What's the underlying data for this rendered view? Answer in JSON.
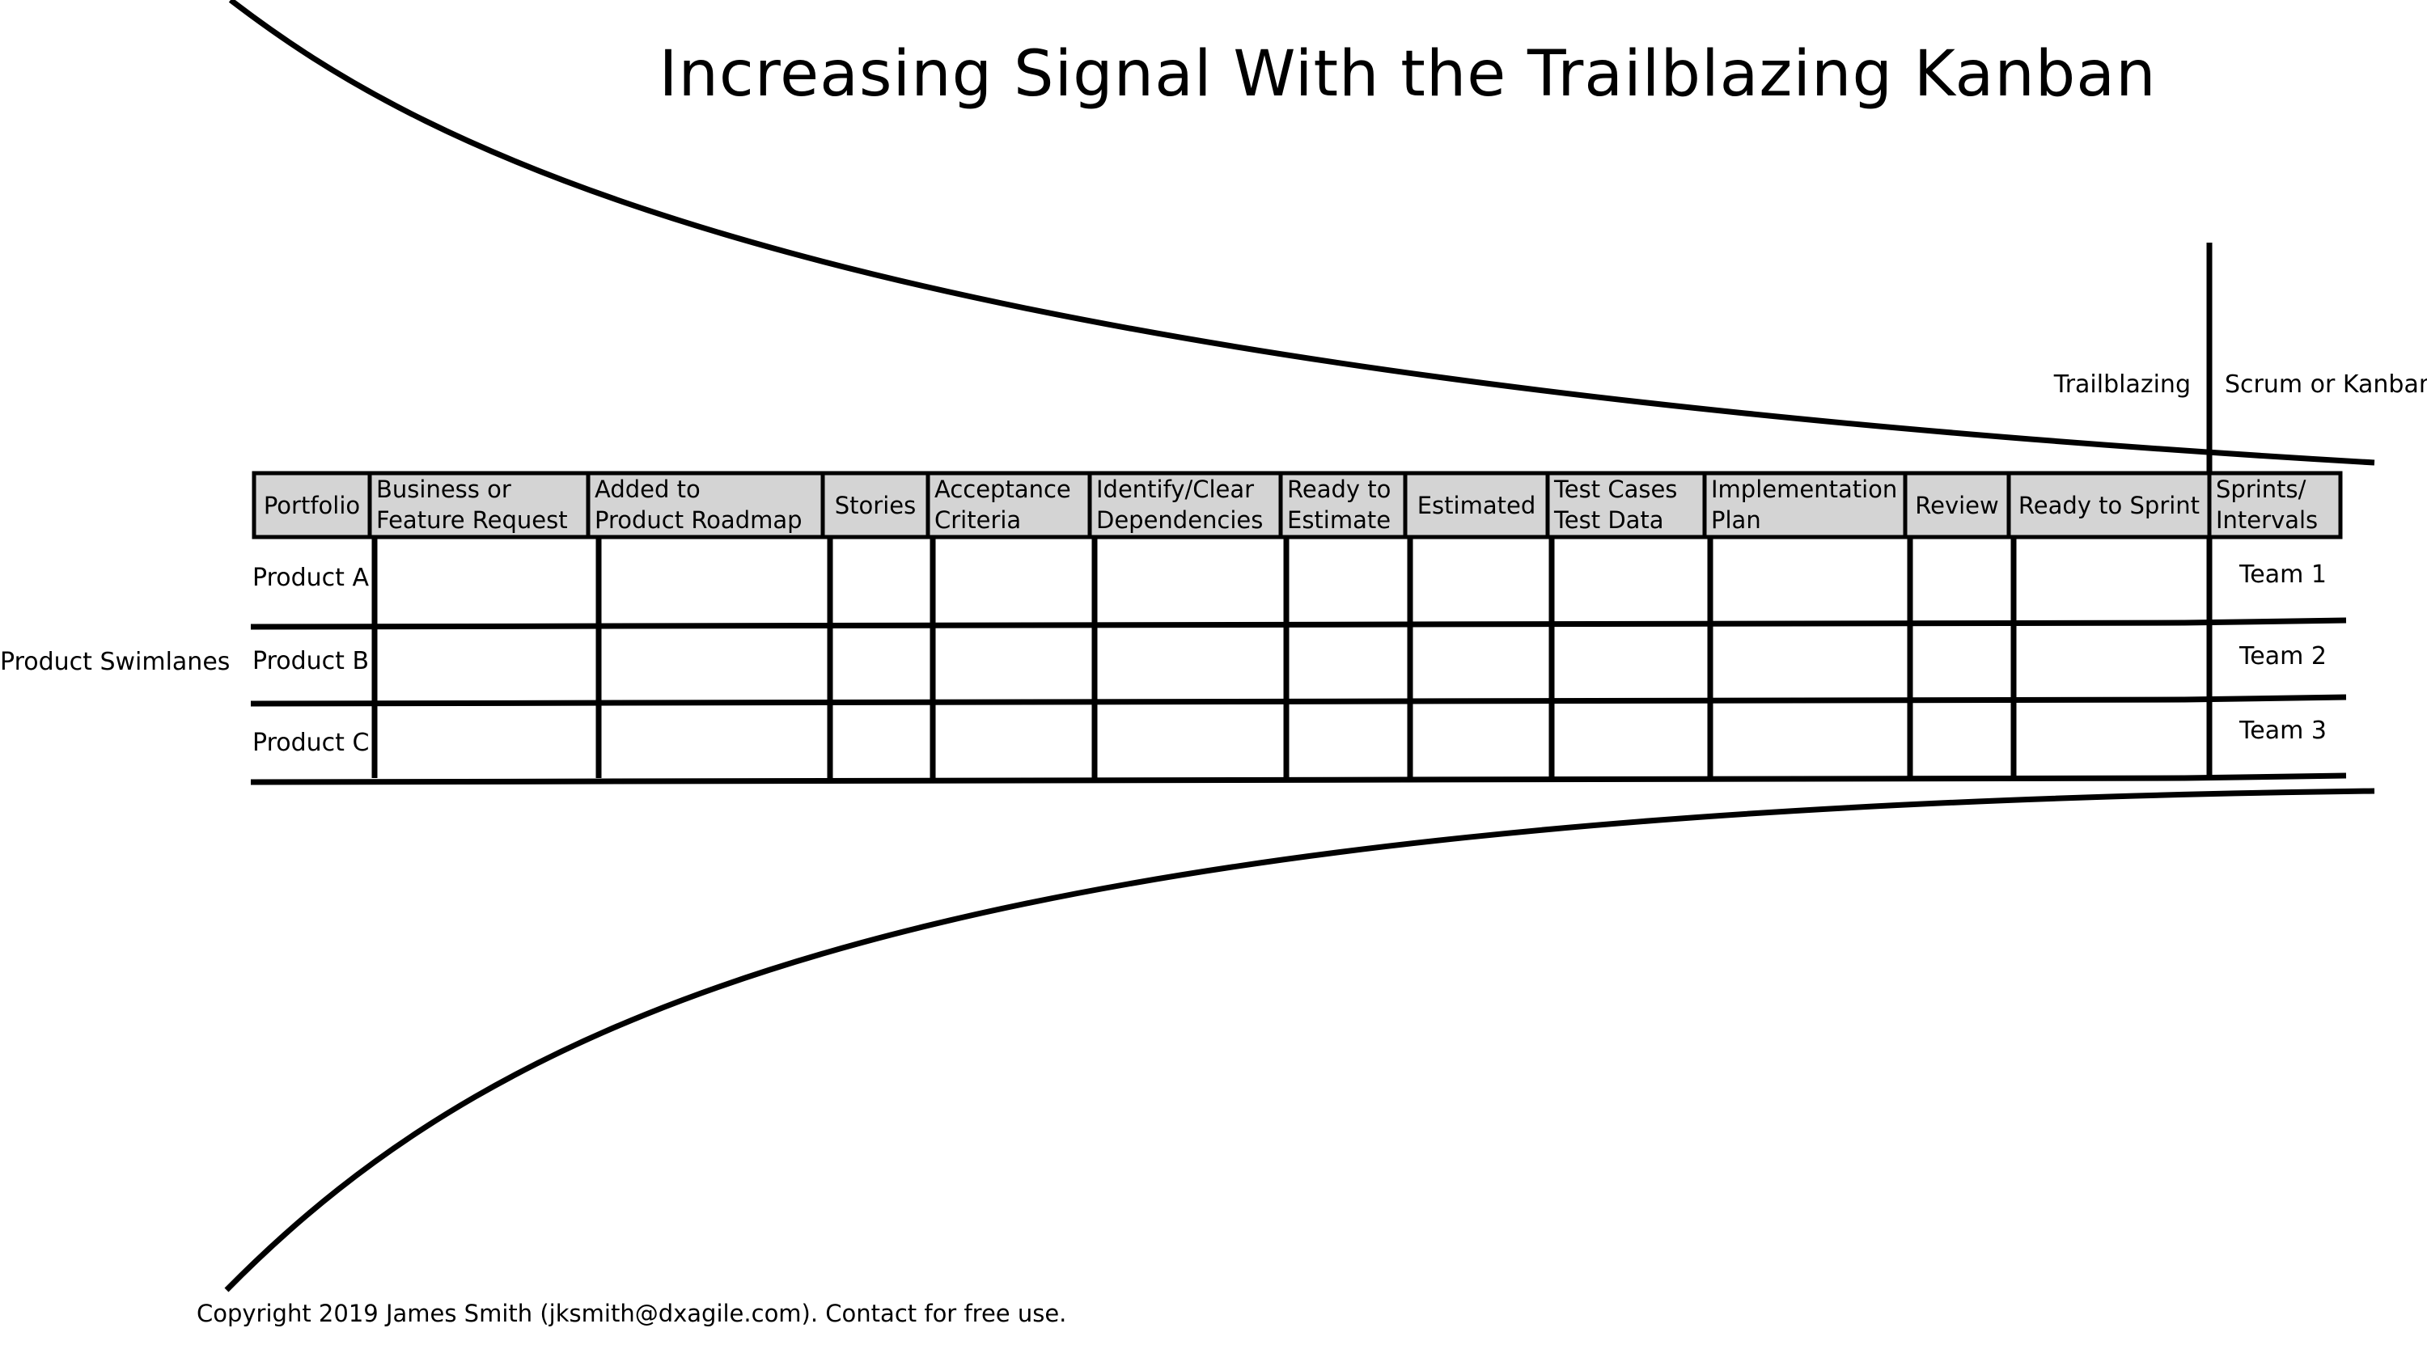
{
  "title": "Increasing Signal With the Trailblazing Kanban",
  "sections": {
    "left": "Trailblazing",
    "right": "Scrum or Kanban"
  },
  "side_label": "Product Swimlanes",
  "columns": [
    [
      "Portfolio"
    ],
    [
      "Business or",
      "Feature Request"
    ],
    [
      "Added to",
      "Product Roadmap"
    ],
    [
      "Stories"
    ],
    [
      "Acceptance",
      "Criteria"
    ],
    [
      "Identify/Clear",
      "Dependencies"
    ],
    [
      "Ready to",
      "Estimate"
    ],
    [
      "Estimated"
    ],
    [
      "Test Cases",
      "Test Data"
    ],
    [
      "Implementation",
      "Plan"
    ],
    [
      "Review"
    ],
    [
      "Ready to Sprint"
    ],
    [
      "Sprints/",
      "Intervals"
    ]
  ],
  "rows": [
    "Product A",
    "Product B",
    "Product C"
  ],
  "teams": [
    "Team 1",
    "Team 2",
    "Team 3"
  ],
  "footer": "Copyright 2019 James Smith (jksmith@dxagile.com). Contact for free use.",
  "colors": {
    "ink": "#000000",
    "header_fill": "#d4d4d4",
    "background": "#ffffff"
  }
}
